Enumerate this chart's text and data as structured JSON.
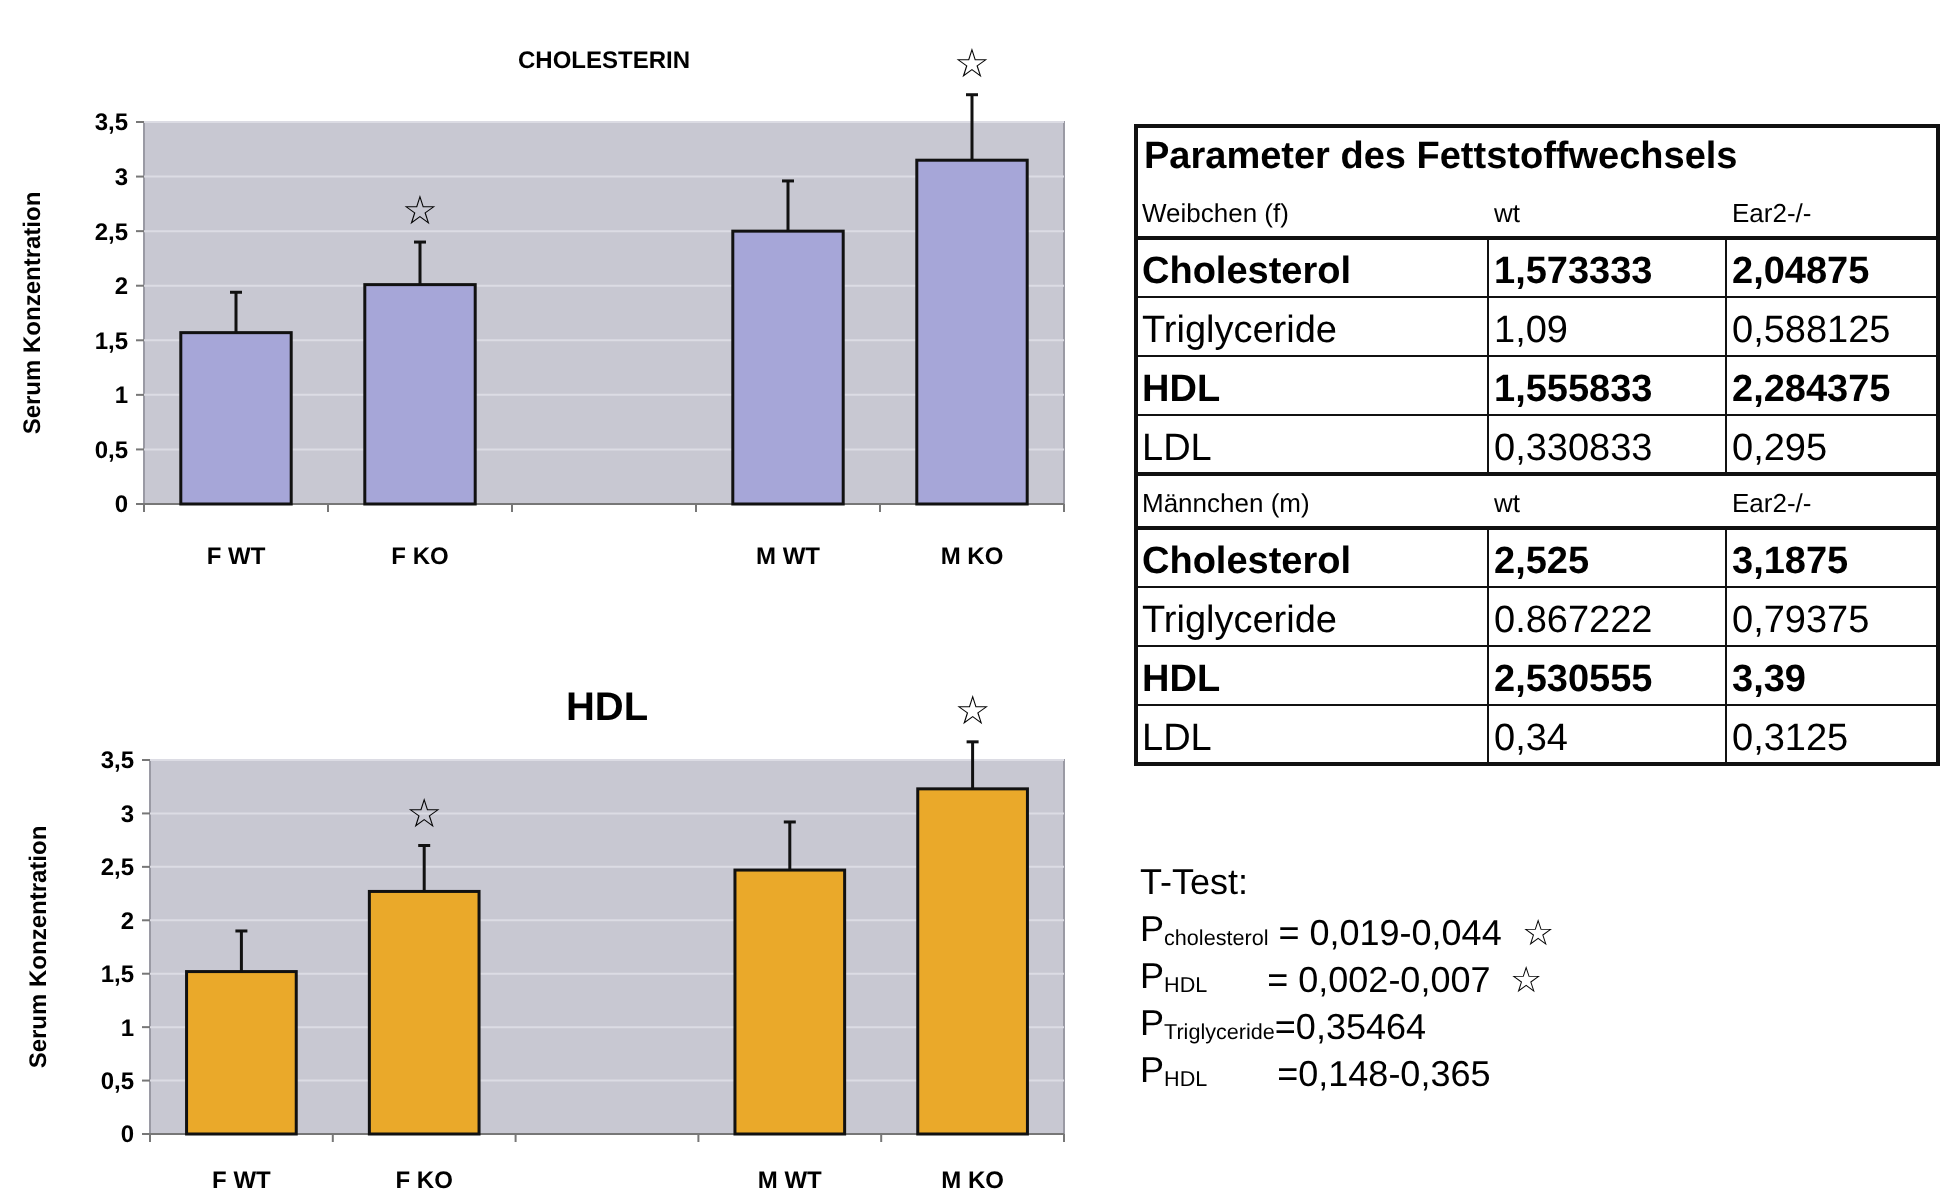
{
  "chart_data": [
    {
      "type": "bar",
      "title": "CHOLESTERIN",
      "ylabel": "Serum Konzentration",
      "categories": [
        "F WT",
        "F KO",
        null,
        "M WT",
        "M KO"
      ],
      "values": [
        1.57,
        2.01,
        null,
        2.5,
        3.15
      ],
      "errors": [
        [
          1.57,
          1.94
        ],
        [
          2.01,
          2.4
        ],
        null,
        [
          2.5,
          2.96
        ],
        [
          3.15,
          3.75
        ]
      ],
      "color": "#a6a6d8",
      "ylim": [
        0,
        3.5
      ],
      "yticks": [
        0,
        {
          "value": 0.5,
          "label": "0,5"
        },
        1,
        {
          "value": 1.5,
          "label": "1,5"
        },
        2,
        {
          "value": 2.5,
          "label": "2,5"
        },
        3,
        {
          "value": 3.5,
          "label": "3,5"
        }
      ],
      "grid": "y",
      "annotations": [
        "☆",
        "☆"
      ]
    },
    {
      "type": "bar",
      "title": "HDL",
      "ylabel": "Serum Konzentration",
      "categories": [
        "F WT",
        "F KO",
        null,
        "M WT",
        "M KO"
      ],
      "values": [
        1.52,
        2.27,
        null,
        2.47,
        3.23
      ],
      "errors": [
        [
          1.52,
          1.9
        ],
        [
          2.27,
          2.7
        ],
        null,
        [
          2.47,
          2.92
        ],
        [
          3.23,
          3.67
        ]
      ],
      "color": "#eaa92a",
      "ylim": [
        0,
        3.5
      ],
      "yticks": [
        0,
        {
          "value": 0.5,
          "label": "0,5"
        },
        1,
        {
          "value": 1.5,
          "label": "1,5"
        },
        2,
        {
          "value": 2.5,
          "label": "2,5"
        },
        3,
        {
          "value": 3.5,
          "label": "3,5"
        }
      ],
      "grid": "y",
      "annotations": [
        "☆",
        "☆"
      ]
    },
    {
      "type": "other",
      "title": "Parameter des Fettstoffwechsels",
      "annotations": [
        "Weibchen (f)",
        "wt",
        "Ear2-/-",
        "Cholesterol",
        "1,573333",
        "2,04875",
        "Triglyceride",
        "1,09",
        "0,588125",
        "HDL",
        "1,555833",
        "2,284375",
        "LDL",
        "0,330833",
        "0,295",
        "Männchen (m)",
        "wt",
        "Ear2-/-",
        "Cholesterol",
        "2,525",
        "3,1875",
        "Triglyceride",
        "0.867222",
        "0,79375",
        "HDL",
        "2,530555",
        "3,39",
        "LDL",
        "0,34",
        "0,3125"
      ]
    },
    {
      "type": "other",
      "title": "T-Test:",
      "annotations": [
        "P$_{cholesterol}$ = 0,019-0,044  ☆",
        "P$_{HDL}$      = 0,002-0,007  ☆",
        "P$_{Triglyceride}$=0,35464",
        "P$_{HDL}$       =0,148-0,365"
      ]
    }
  ]
}
